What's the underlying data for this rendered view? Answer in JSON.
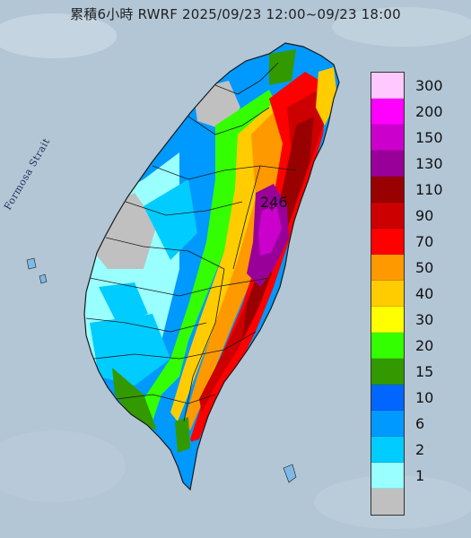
{
  "title": "累積6小時 RWRF 2025/09/23 12:00~09/23 18:00",
  "map_labels": {
    "strait": "Formosa Strait",
    "max_value": "246"
  },
  "legend": {
    "items": [
      {
        "label": "300",
        "color": "#ffc8ff"
      },
      {
        "label": "200",
        "color": "#ff00ff"
      },
      {
        "label": "150",
        "color": "#cc00cc"
      },
      {
        "label": "130",
        "color": "#990099"
      },
      {
        "label": "110",
        "color": "#990000"
      },
      {
        "label": "90",
        "color": "#cc0000"
      },
      {
        "label": "70",
        "color": "#ff0000"
      },
      {
        "label": "50",
        "color": "#ff9900"
      },
      {
        "label": "40",
        "color": "#ffcc00"
      },
      {
        "label": "30",
        "color": "#ffff00"
      },
      {
        "label": "20",
        "color": "#33ff00"
      },
      {
        "label": "15",
        "color": "#339900"
      },
      {
        "label": "10",
        "color": "#0066ff"
      },
      {
        "label": "6",
        "color": "#0099ff"
      },
      {
        "label": "2",
        "color": "#00ccff"
      },
      {
        "label": "1",
        "color": "#99ffff"
      },
      {
        "label": "",
        "color": "#c0c0c0"
      }
    ]
  }
}
